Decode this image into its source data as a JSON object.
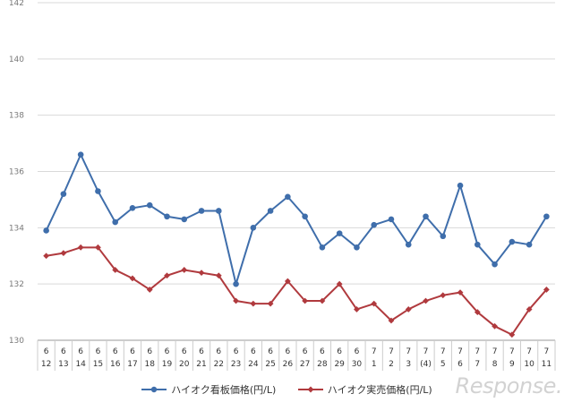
{
  "chart_data": {
    "type": "line",
    "title": "",
    "xlabel": "",
    "ylabel": "",
    "ylim": [
      130,
      142
    ],
    "yticks": [
      130,
      132,
      134,
      136,
      138,
      140,
      142
    ],
    "categories": [
      {
        "month": "6",
        "day": "12"
      },
      {
        "month": "6",
        "day": "13"
      },
      {
        "month": "6",
        "day": "14"
      },
      {
        "month": "6",
        "day": "15"
      },
      {
        "month": "6",
        "day": "16"
      },
      {
        "month": "6",
        "day": "17"
      },
      {
        "month": "6",
        "day": "18"
      },
      {
        "month": "6",
        "day": "19"
      },
      {
        "month": "6",
        "day": "20"
      },
      {
        "month": "6",
        "day": "21"
      },
      {
        "month": "6",
        "day": "22"
      },
      {
        "month": "6",
        "day": "23"
      },
      {
        "month": "6",
        "day": "24"
      },
      {
        "month": "6",
        "day": "25"
      },
      {
        "month": "6",
        "day": "26"
      },
      {
        "month": "6",
        "day": "27"
      },
      {
        "month": "6",
        "day": "28"
      },
      {
        "month": "6",
        "day": "29"
      },
      {
        "month": "6",
        "day": "30"
      },
      {
        "month": "7",
        "day": "1"
      },
      {
        "month": "7",
        "day": "2"
      },
      {
        "month": "7",
        "day": "3"
      },
      {
        "month": "7",
        "day": "(4)"
      },
      {
        "month": "7",
        "day": "5"
      },
      {
        "month": "7",
        "day": "6"
      },
      {
        "month": "7",
        "day": "7"
      },
      {
        "month": "7",
        "day": "8"
      },
      {
        "month": "7",
        "day": "9"
      },
      {
        "month": "7",
        "day": "10"
      },
      {
        "month": "7",
        "day": "11"
      }
    ],
    "series": [
      {
        "name": "ハイオク看板価格(円/L)",
        "color": "#3f6eab",
        "marker": "circle",
        "values": [
          133.9,
          135.2,
          136.6,
          135.3,
          134.2,
          134.7,
          134.8,
          134.4,
          134.3,
          134.6,
          134.6,
          132.0,
          134.0,
          134.6,
          135.1,
          134.4,
          133.3,
          133.8,
          133.3,
          134.1,
          134.3,
          133.4,
          134.4,
          133.7,
          135.5,
          133.4,
          132.7,
          133.5,
          133.4,
          134.4
        ]
      },
      {
        "name": "ハイオク実売価格(円/L)",
        "color": "#b03a3e",
        "marker": "diamond",
        "values": [
          133.0,
          133.1,
          133.3,
          133.3,
          132.5,
          132.2,
          131.8,
          132.3,
          132.5,
          132.4,
          132.3,
          131.4,
          131.3,
          131.3,
          132.1,
          131.4,
          131.4,
          132.0,
          131.1,
          131.3,
          130.7,
          131.1,
          131.4,
          131.6,
          131.7,
          131.0,
          130.5,
          130.2,
          131.1,
          131.8
        ]
      }
    ]
  },
  "watermark": "Response."
}
